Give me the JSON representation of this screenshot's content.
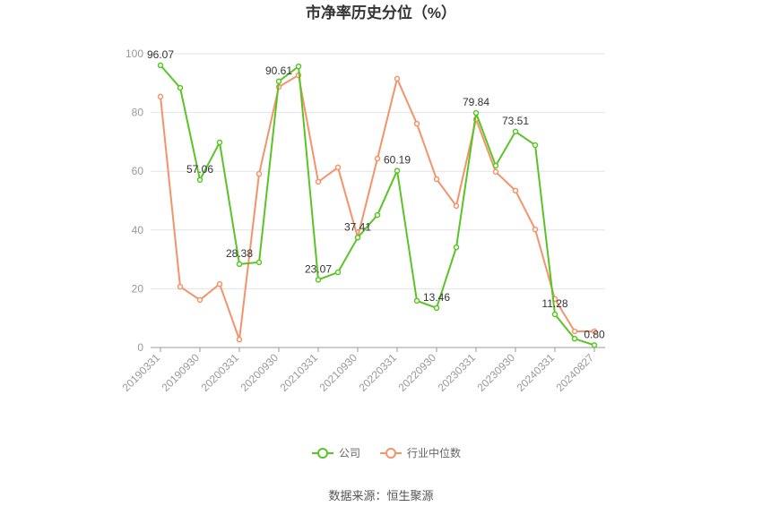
{
  "chart_data": {
    "type": "line",
    "title": "市净率历史分位（%）",
    "source": "数据来源：恒生聚源",
    "categories": [
      "20190331",
      null,
      "20190930",
      null,
      "20200331",
      null,
      "20200930",
      null,
      "20210331",
      null,
      "20210930",
      null,
      "20220331",
      null,
      "20220930",
      null,
      "20230331",
      null,
      "20230930",
      null,
      "20240331",
      null,
      "20240827"
    ],
    "series": [
      {
        "name": "公司",
        "color": "#5ac426",
        "values": [
          96.07,
          88.4,
          57.06,
          69.8,
          28.38,
          29.0,
          90.61,
          95.7,
          23.07,
          25.6,
          37.41,
          45.1,
          60.19,
          15.9,
          13.46,
          34.1,
          79.84,
          61.9,
          73.51,
          68.9,
          11.28,
          3.0,
          0.8
        ],
        "value_labels": [
          "96.07",
          null,
          "57.06",
          null,
          "28.38",
          null,
          "90.61",
          null,
          "23.07",
          null,
          "37.41",
          null,
          "60.19",
          null,
          "13.46",
          null,
          "79.84",
          null,
          "73.51",
          null,
          "11.28",
          null,
          "0.80"
        ]
      },
      {
        "name": "行业中位数",
        "color": "#f4936a",
        "values": [
          85.4,
          20.7,
          16.2,
          21.6,
          2.7,
          59.1,
          88.7,
          92.7,
          56.4,
          61.3,
          37.5,
          64.3,
          91.5,
          76.2,
          57.3,
          48.2,
          77.7,
          59.8,
          53.4,
          40.2,
          16.5,
          5.5,
          5.5
        ]
      }
    ],
    "ylim": [
      0,
      100
    ],
    "yticks": [
      0,
      20,
      40,
      60,
      80,
      100
    ],
    "grid": true,
    "legend": "bottom"
  }
}
